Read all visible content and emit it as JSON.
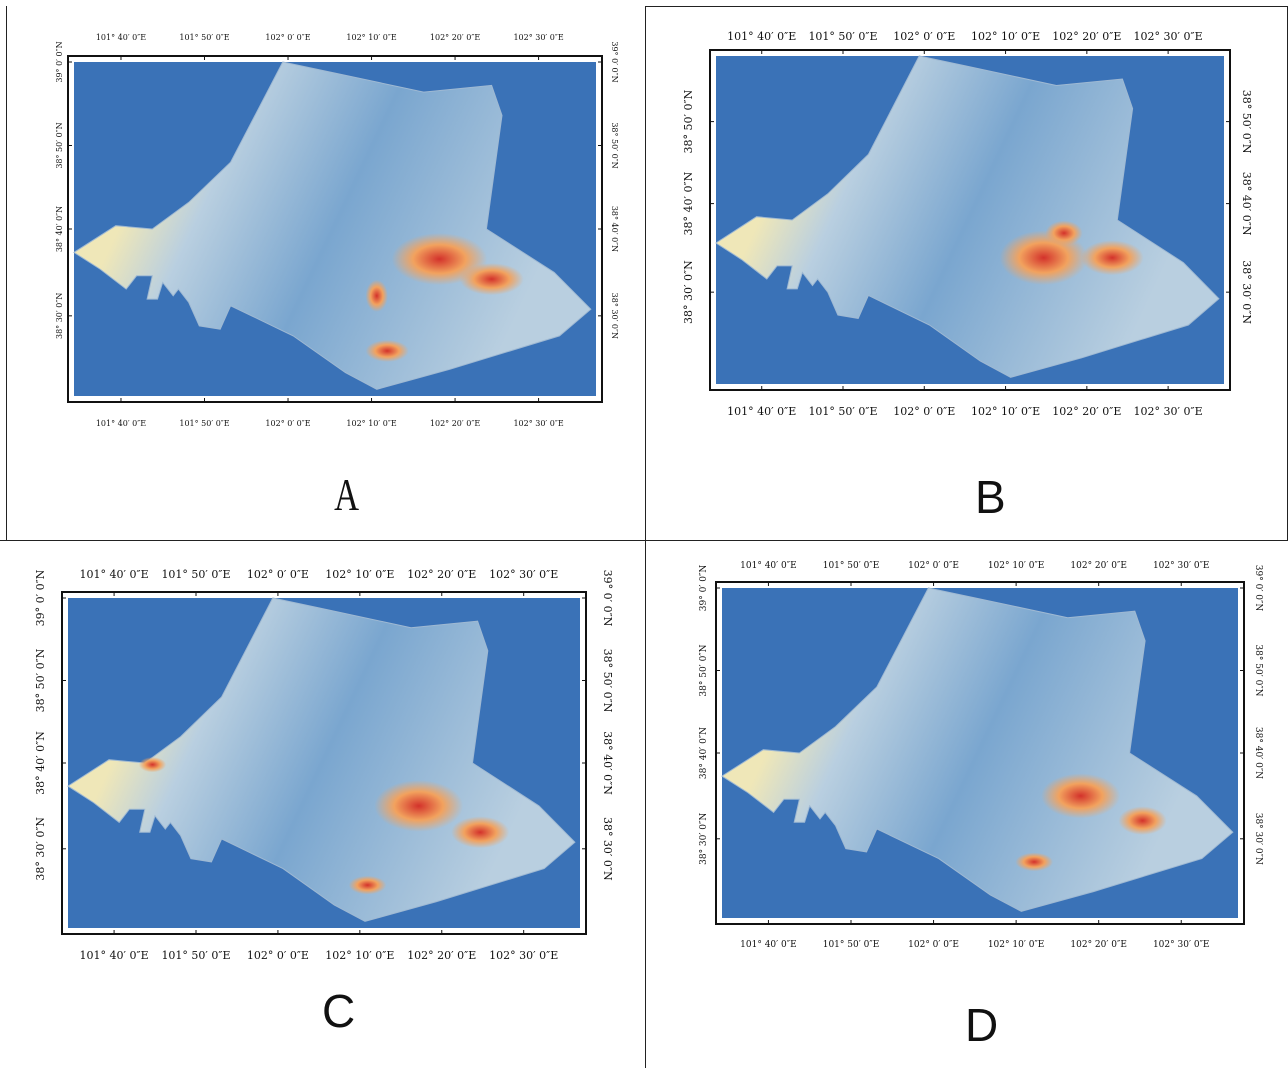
{
  "colors": {
    "background_water": "#3a72b7",
    "low": "#7aa6cf",
    "mid_low": "#b9cfe0",
    "mid": "#efe7b8",
    "high": "#f2a25e",
    "very_high": "#d3322b"
  },
  "panels": [
    {
      "label": "A",
      "lon_ticks": [
        "101° 40′ 0″E",
        "101° 50′ 0″E",
        "102° 0′ 0″E",
        "102° 10′ 0″E",
        "102° 20′ 0″E",
        "102° 30′ 0″E"
      ],
      "lat_ticks": [
        "39° 0′ 0″N",
        "38° 50′ 0″N",
        "38° 40′ 0″N",
        "38° 30′ 0″N"
      ]
    },
    {
      "label": "B",
      "lon_ticks": [
        "101° 40′ 0″E",
        "101° 50′ 0″E",
        "102° 0′ 0″E",
        "102° 10′ 0″E",
        "102° 20′ 0″E",
        "102° 30′ 0″E"
      ],
      "lat_ticks": [
        "38° 50′ 0″N",
        "38° 40′ 0″N",
        "38° 30′ 0″N"
      ]
    },
    {
      "label": "C",
      "lon_ticks": [
        "101° 40′ 0″E",
        "101° 50′ 0″E",
        "102° 0′ 0″E",
        "102° 10′ 0″E",
        "102° 20′ 0″E",
        "102° 30′ 0″E"
      ],
      "lat_ticks": [
        "39° 0′ 0″N",
        "38° 50′ 0″N",
        "38° 40′ 0″N",
        "38° 30′ 0″N"
      ]
    },
    {
      "label": "D",
      "lon_ticks": [
        "101° 40′ 0″E",
        "101° 50′ 0″E",
        "102° 0′ 0″E",
        "102° 10′ 0″E",
        "102° 20′ 0″E",
        "102° 30′ 0″E"
      ],
      "lat_ticks": [
        "39° 0′ 0″N",
        "38° 50′ 0″N",
        "38° 40′ 0″N",
        "38° 30′ 0″N"
      ]
    }
  ]
}
